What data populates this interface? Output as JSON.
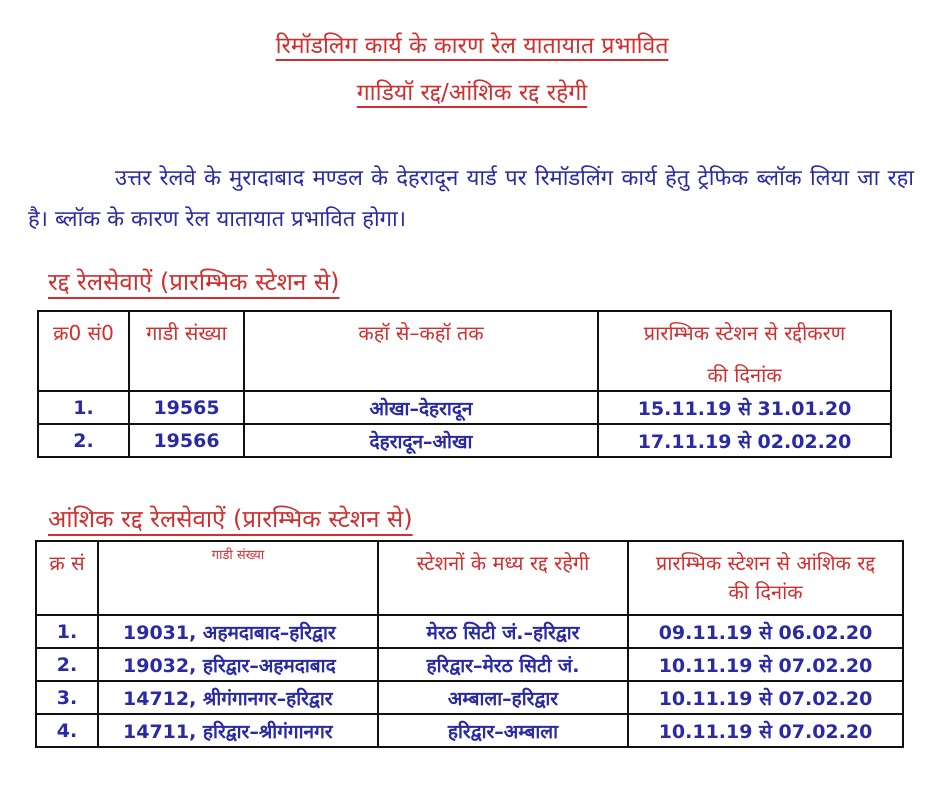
{
  "colors": {
    "heading_red": "#d12f2f",
    "body_blue": "#2a2aa4",
    "table_border": "#111111",
    "page_background": "#ffffff"
  },
  "header": {
    "title_line1": "रिमॉडलिग कार्य के कारण रेल यातायात प्रभावित",
    "title_line2": "गाडियॉ रद्द/आंशिक रद्द रहेगी"
  },
  "intro": {
    "text": "उत्तर रेलवे के मुरादाबाद मण्डल के देहरादून यार्ड पर रिमॉडलिंग कार्य हेतु ट्रेफिक ब्लॉक लिया जा रहा है। ब्लॉक के कारण रेल यातायात प्रभावित होगा।"
  },
  "cancelled": {
    "heading": "रद्द रेलसेवाऐं (प्रारम्भिक स्टेशन से)",
    "headers": {
      "sno": "क्र0 सं0",
      "train_no": "गाडी संख्या",
      "route": "कहॉ से–कहॉ तक",
      "dates_line1": "प्रारम्भिक स्टेशन से रद्दीकरण",
      "dates_line2": "की दिनांक"
    },
    "rows": [
      [
        "1.",
        "19565",
        "ओखा–देहरादून",
        "15.11.19 से 31.01.20"
      ],
      [
        "2.",
        "19566",
        "देहरादून–ओखा",
        "17.11.19 से 02.02.20"
      ]
    ]
  },
  "partial": {
    "heading": "आंशिक रद्द रेलसेवाऐं (प्रारम्भिक स्टेशन से)",
    "headers": {
      "sno": "क्र सं",
      "train_no": "गाडी संख्या",
      "cancelled_between": "स्टेशनों के मध्य रद्द रहेगी",
      "dates_line1": "प्रारम्भिक स्टेशन से आंशिक रद्द",
      "dates_line2": "की दिनांक"
    },
    "rows": [
      [
        "1.",
        "19031, अहमदाबाद–हरिद्वार",
        "मेरठ सिटी जं.–हरिद्वार",
        "09.11.19 से 06.02.20"
      ],
      [
        "2.",
        "19032, हरिद्वार–अहमदाबाद",
        "हरिद्वार–मेरठ सिटी जं.",
        "10.11.19 से 07.02.20"
      ],
      [
        "3.",
        "14712, श्रीगंगानगर–हरिद्वार",
        "अम्बाला–हरिद्वार",
        "10.11.19 से 07.02.20"
      ],
      [
        "4.",
        "14711, हरिद्वार–श्रीगंगानगर",
        "हरिद्वार–अम्बाला",
        "10.11.19 से 07.02.20"
      ]
    ]
  }
}
